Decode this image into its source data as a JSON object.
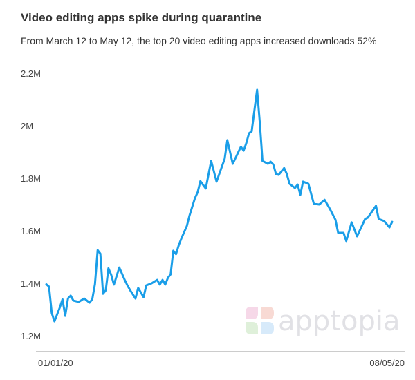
{
  "chart_data": {
    "type": "line",
    "title": "Video editing apps spike during quarantine",
    "subtitle": "From March 12 to May 12, the top 20 video editing apps increased downloads 52%",
    "xlabel": "",
    "ylabel": "",
    "x_tick_labels": [
      "01/01/20",
      "08/05/20"
    ],
    "x_range": [
      "2020-01-01",
      "2020-05-08"
    ],
    "y_ticks": [
      1.2,
      1.4,
      1.6,
      1.8,
      2.0,
      2.2
    ],
    "y_tick_labels": [
      "1.2M",
      "1.4M",
      "1.6M",
      "1.8M",
      "2M",
      "2.2M"
    ],
    "ylim": [
      1.2,
      2.2
    ],
    "y_unit": "millions of downloads",
    "grid": false,
    "line_color": "#1a9ee8",
    "watermark": "apptopia",
    "series": [
      {
        "x": [
          "2020-01-01",
          "2020-01-02",
          "2020-01-03",
          "2020-01-04",
          "2020-01-06",
          "2020-01-07",
          "2020-01-08",
          "2020-01-09",
          "2020-01-10",
          "2020-01-11",
          "2020-01-13",
          "2020-01-15",
          "2020-01-17",
          "2020-01-18",
          "2020-01-19",
          "2020-01-20",
          "2020-01-21",
          "2020-01-22",
          "2020-01-23",
          "2020-01-24",
          "2020-01-25",
          "2020-01-26",
          "2020-01-28",
          "2020-01-30",
          "2020-01-31",
          "2020-02-01",
          "2020-02-03",
          "2020-02-04",
          "2020-02-06",
          "2020-02-07",
          "2020-02-09",
          "2020-02-11",
          "2020-02-12",
          "2020-02-13",
          "2020-02-14",
          "2020-02-15",
          "2020-02-16",
          "2020-02-17",
          "2020-02-18",
          "2020-02-19",
          "2020-02-20",
          "2020-02-22",
          "2020-02-23",
          "2020-02-25",
          "2020-02-26",
          "2020-02-27",
          "2020-02-29",
          "2020-03-02",
          "2020-03-04",
          "2020-03-07",
          "2020-03-08",
          "2020-03-10",
          "2020-03-13",
          "2020-03-14",
          "2020-03-15",
          "2020-03-16",
          "2020-03-17",
          "2020-03-19",
          "2020-03-20",
          "2020-03-21",
          "2020-03-23",
          "2020-03-24",
          "2020-03-25",
          "2020-03-26",
          "2020-03-27",
          "2020-03-29",
          "2020-03-30",
          "2020-03-31",
          "2020-04-02",
          "2020-04-03",
          "2020-04-04",
          "2020-04-05",
          "2020-04-07",
          "2020-04-09",
          "2020-04-11",
          "2020-04-13",
          "2020-04-15",
          "2020-04-17",
          "2020-04-18",
          "2020-04-20",
          "2020-04-21",
          "2020-04-23",
          "2020-04-25",
          "2020-04-28",
          "2020-04-29",
          "2020-05-02",
          "2020-05-03",
          "2020-05-05",
          "2020-05-07",
          "2020-05-08"
        ],
        "values": [
          1.396,
          1.387,
          1.287,
          1.255,
          1.308,
          1.339,
          1.276,
          1.342,
          1.353,
          1.334,
          1.329,
          1.342,
          1.326,
          1.339,
          1.397,
          1.526,
          1.513,
          1.36,
          1.373,
          1.457,
          1.432,
          1.395,
          1.46,
          1.413,
          1.392,
          1.374,
          1.342,
          1.382,
          1.347,
          1.392,
          1.4,
          1.413,
          1.395,
          1.413,
          1.395,
          1.421,
          1.434,
          1.524,
          1.511,
          1.545,
          1.571,
          1.618,
          1.658,
          1.724,
          1.747,
          1.789,
          1.761,
          1.866,
          1.787,
          1.874,
          1.945,
          1.855,
          1.92,
          1.905,
          1.934,
          1.971,
          1.979,
          2.137,
          2.013,
          1.866,
          1.855,
          1.863,
          1.853,
          1.816,
          1.813,
          1.839,
          1.816,
          1.779,
          1.763,
          1.776,
          1.737,
          1.787,
          1.779,
          1.703,
          1.7,
          1.718,
          1.682,
          1.642,
          1.592,
          1.592,
          1.561,
          1.632,
          1.579,
          1.645,
          1.65,
          1.695,
          1.645,
          1.637,
          1.613,
          1.634
        ]
      }
    ]
  }
}
